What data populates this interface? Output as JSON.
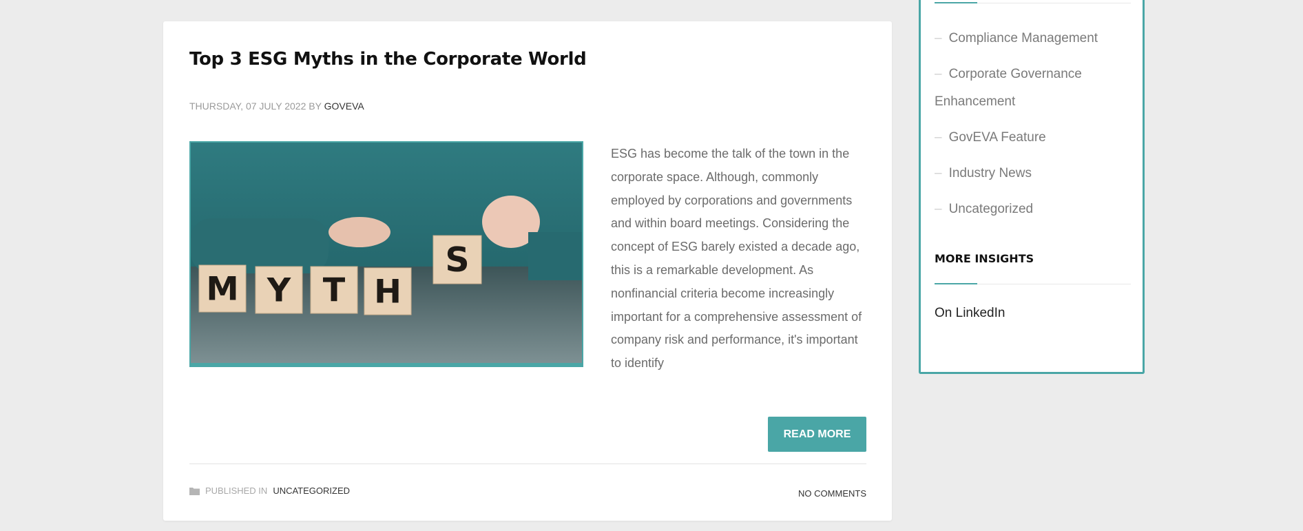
{
  "article": {
    "title": "Top 3 ESG Myths in the Corporate World",
    "date": "THURSDAY, 07 JULY 2022",
    "by": "BY",
    "author": "GOVEVA",
    "image": {
      "blocks": [
        "M",
        "Y",
        "T",
        "H",
        "S"
      ]
    },
    "excerpt": "ESG has become the talk of the town in the corporate space. Although, commonly employed by corporations and governments and within board meetings. Considering the concept of ESG barely existed a decade ago, this is a remarkable development. As nonfinancial criteria become increasingly important for a comprehensive assessment of company risk and performance, it's important to identify",
    "read_more": "READ MORE",
    "published_in": "PUBLISHED IN",
    "category": "UNCATEGORIZED",
    "comments": "NO COMMENTS"
  },
  "sidebar": {
    "categories": [
      {
        "label": "Compliance Management"
      },
      {
        "label": "Corporate Governance Enhancement"
      },
      {
        "label": "GovEVA Feature"
      },
      {
        "label": "Industry News"
      },
      {
        "label": "Uncategorized"
      }
    ],
    "more_insights_heading": "MORE INSIGHTS",
    "linkedin_label": "On LinkedIn"
  },
  "colors": {
    "accent": "#4aa6a6",
    "background": "#ececec"
  }
}
